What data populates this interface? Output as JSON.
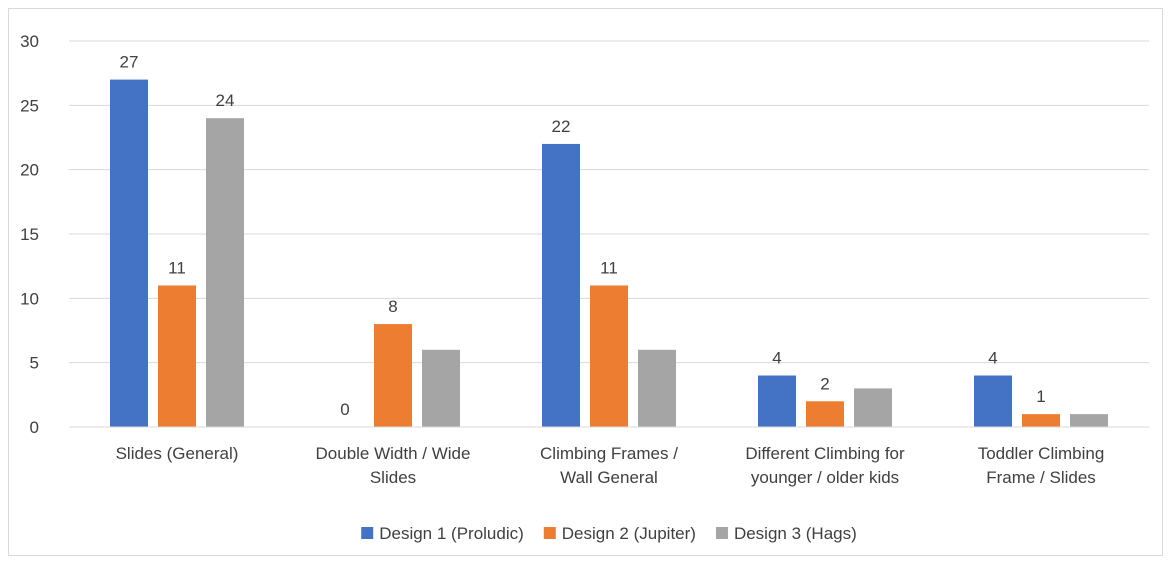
{
  "chart_data": {
    "type": "bar",
    "title": "",
    "xlabel": "",
    "ylabel": "",
    "ylim": [
      0,
      30
    ],
    "yticks": [
      0,
      5,
      10,
      15,
      20,
      25,
      30
    ],
    "grid": true,
    "legend_position": "bottom",
    "categories": [
      [
        "Slides (General)"
      ],
      [
        "Double Width / Wide",
        "Slides"
      ],
      [
        "Climbing Frames /",
        "Wall General"
      ],
      [
        "Different Climbing for",
        "younger / older kids"
      ],
      [
        "Toddler Climbing",
        "Frame / Slides"
      ]
    ],
    "series": [
      {
        "name": "Design 1 (Proludic)",
        "color": "#4472C4",
        "values": [
          27,
          0,
          22,
          4,
          4
        ],
        "labels": [
          "27",
          "0",
          "22",
          "4",
          "4"
        ]
      },
      {
        "name": "Design 2 (Jupiter)",
        "color": "#ED7D31",
        "values": [
          11,
          8,
          11,
          2,
          1
        ],
        "labels": [
          "11",
          "8",
          "11",
          "2",
          "1"
        ]
      },
      {
        "name": "Design 3 (Hags)",
        "color": "#A5A5A5",
        "values": [
          24,
          6,
          6,
          3,
          1
        ],
        "labels": [
          "24",
          "",
          "",
          "",
          ""
        ]
      }
    ]
  }
}
